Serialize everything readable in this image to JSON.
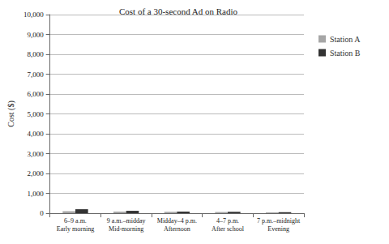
{
  "chart_data": {
    "type": "bar",
    "title": "Cost of a 30-second Ad on Radio",
    "y_label": "Cost ($)",
    "categories": [
      "6–9 a.m.\nEarly morning",
      "9 a.m.–midday\nMid-morning",
      "Midday–4 p.m.\nAfternoon",
      "4–7 p.m.\nAfter school",
      "7 p.m.–midnight\nEvening"
    ],
    "series": [
      {
        "name": "Station A",
        "color": "#a6a6a6",
        "values": [
          100,
          80,
          70,
          60,
          40
        ]
      },
      {
        "name": "Station B",
        "color": "#333333",
        "values": [
          200,
          120,
          80,
          70,
          50
        ]
      }
    ],
    "ylim": [
      0,
      10000
    ],
    "yticks": [
      0,
      1000,
      2000,
      3000,
      4000,
      5000,
      6000,
      7000,
      8000,
      9000,
      10000
    ],
    "grid": true,
    "legend": "right"
  }
}
